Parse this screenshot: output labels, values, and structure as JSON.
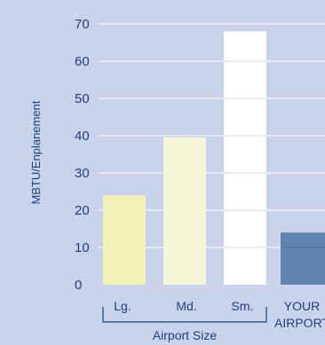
{
  "chart_data": {
    "type": "bar",
    "title": "",
    "ylabel": "MBTU/Enplanement",
    "xlabel": "Airport Size",
    "ylim": [
      0,
      70
    ],
    "yticks": [
      0,
      10,
      20,
      30,
      40,
      50,
      60,
      70
    ],
    "grid": "horizontal",
    "categories": [
      "Lg.",
      "Md.",
      "Sm.",
      "YOUR AIRPORT"
    ],
    "values": [
      24,
      39.5,
      68,
      14
    ],
    "colors": [
      "#f3f0b8",
      "#f6f6d8",
      "#ffffff",
      "#5f84ae"
    ],
    "background": "#c9d3ec",
    "text_color": "#1f3f7c"
  }
}
